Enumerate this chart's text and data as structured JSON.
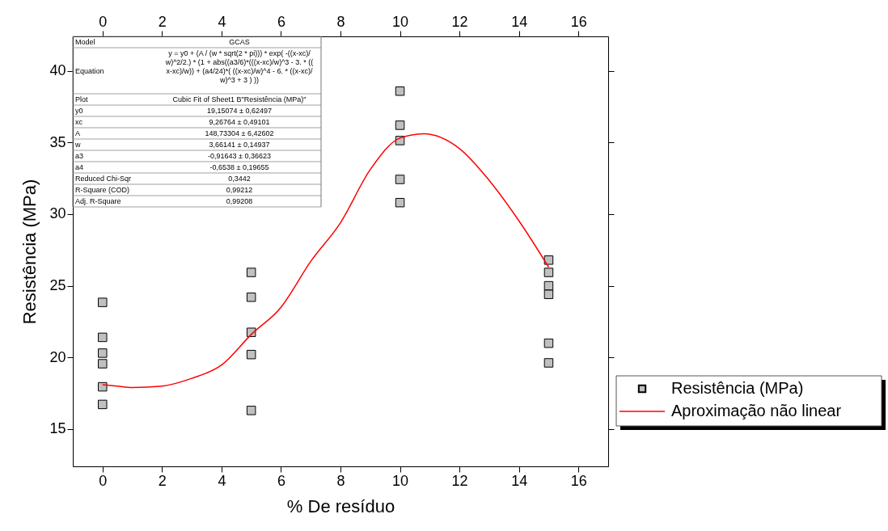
{
  "chart_data": {
    "type": "scatter",
    "xlabel": "% De resíduo",
    "ylabel": "Resistência (MPa)",
    "xlim": [
      -1,
      17
    ],
    "xticks": [
      0,
      2,
      4,
      6,
      8,
      10,
      12,
      14,
      16
    ],
    "x2lim": [
      -1,
      17
    ],
    "x2ticks": [
      0,
      2,
      4,
      6,
      8,
      10,
      12,
      14,
      16
    ],
    "ylim": [
      12.4,
      42.4
    ],
    "yticks": [
      15,
      20,
      25,
      30,
      35,
      40
    ],
    "grid": false,
    "legend": "bottom right",
    "series": [
      {
        "name": "Resistência (MPa)",
        "type": "scatter",
        "marker": "square",
        "color": "#c0c0c0",
        "x": [
          0,
          0,
          0,
          0,
          0,
          0,
          5,
          5,
          5,
          5,
          5,
          10,
          10,
          10,
          10,
          10,
          15,
          15,
          15,
          15,
          15,
          15
        ],
        "values": [
          23.84,
          21.4,
          20.3,
          19.56,
          17.95,
          16.72,
          25.93,
          24.2,
          21.75,
          20.2,
          16.3,
          38.58,
          36.2,
          35.13,
          32.42,
          30.8,
          26.79,
          25.93,
          25.0,
          24.4,
          20.99,
          19.62
        ]
      },
      {
        "name": "Aproximação não linear",
        "type": "line",
        "marker": "none",
        "color": "#ff0000",
        "line_style": "solid",
        "x": [
          0,
          0.5,
          1,
          2,
          3,
          4,
          5,
          6,
          7,
          8,
          9,
          10,
          10.8,
          12,
          13,
          14,
          15
        ],
        "values": [
          18.1,
          18.0,
          17.9,
          18.0,
          18.54,
          19.47,
          21.6,
          23.5,
          26.7,
          29.4,
          33.1,
          35.3,
          35.6,
          34.57,
          32.35,
          29.53,
          26.3
        ]
      }
    ],
    "annotations": [
      "Model",
      "GCAS",
      "Equation",
      "y = y0 + (A / (w * sqrt(2 * pi))) * exp( -((x-xc)/w)^2/2.) * (1 + abs((a3/6)*(((x-xc)/w)^3 - 3. * ((x-xc)/w)) + (a4/24)*( ((x-xc)/w)^4 - 6. * ((x-xc)/w)^3 + 3 ) ))",
      "Plot",
      "Cubic Fit of Sheet1 B\"Resistência (MPa)\"",
      "y0",
      "19,15074 ± 0,62497",
      "xc",
      "9,26764 ± 0,49101",
      "A",
      "148,73304 ± 6,42602",
      "w",
      "3,66141 ± 0,14937",
      "a3",
      "-0,91643 ± 0,36623",
      "a4",
      "-0,6538 ± 0,19655",
      "Reduced Chi-Sqr",
      "0,3442",
      "R-Square (COD)",
      "0,99212",
      "Adj. R-Square",
      "0,99208"
    ]
  }
}
